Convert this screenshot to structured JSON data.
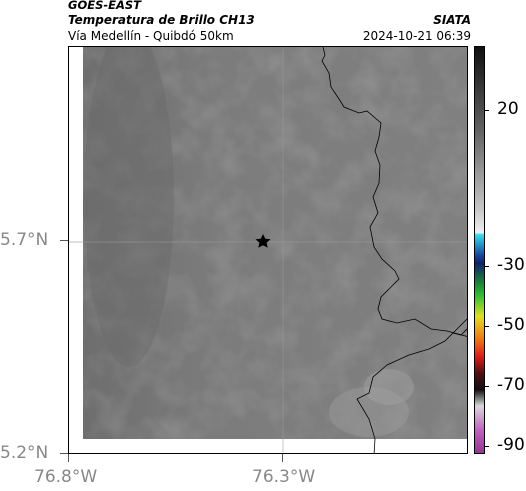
{
  "header": {
    "satellite": "GOES-EAST",
    "product": "Temperatura de Brillo CH13",
    "region": "Vía Medellín - Quibdó 50km",
    "organization": "SIATA",
    "timestamp": "2024-10-21 06:39"
  },
  "map": {
    "latitude_labels": [
      "5.7°N",
      "5.2°N"
    ],
    "longitude_labels": [
      "76.8°W",
      "76.3°W"
    ],
    "marker": "star",
    "marker_icon": "star-icon"
  },
  "colorbar": {
    "tick_labels": [
      "20",
      "-30",
      "-50",
      "-70",
      "-90"
    ],
    "colors": {
      "high": "#202020",
      "mid": "#d8d8d8",
      "cyan": "#20d8e8",
      "blue": "#2030a0",
      "green": "#20b020",
      "yellow": "#e8e020",
      "red": "#e02020",
      "dark": "#301010",
      "magenta": "#b040b0"
    }
  }
}
